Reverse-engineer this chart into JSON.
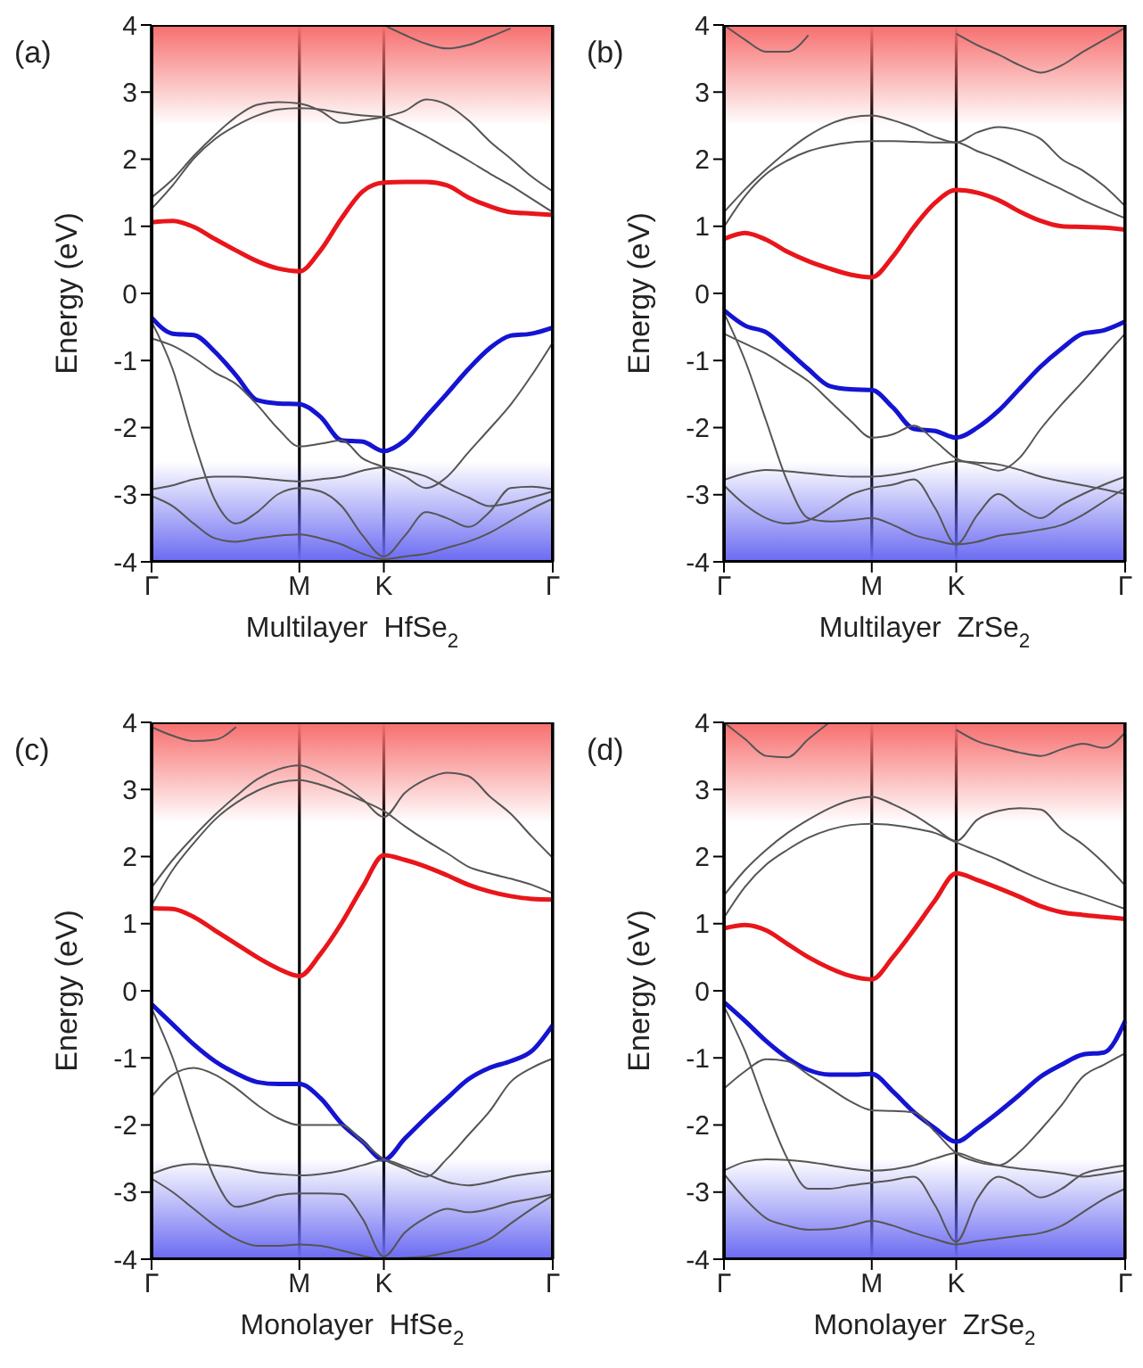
{
  "chart_data": [
    {
      "type": "line",
      "xlabel": "Multilayer  HfSe$_{2}$",
      "ylabel": "Energy (eV)",
      "annotations": [
        "(a)"
      ],
      "grid": "x",
      "marker": "none",
      "line_style": "solid",
      "categories": [
        "Γ",
        null,
        null,
        null,
        null,
        null,
        null,
        "M",
        null,
        null,
        null,
        "K",
        null,
        null,
        null,
        null,
        null,
        null,
        null,
        "Γ"
      ],
      "ylim": [
        -4,
        4
      ],
      "yticks": [
        -4,
        -3,
        -2,
        -1,
        0,
        1,
        2,
        3,
        4
      ],
      "bands": [
        {
          "axis": "y",
          "from": 2.5,
          "to": 4,
          "color": "#f76e6e"
        },
        {
          "axis": "y",
          "from": -2.5,
          "to": -4,
          "color": "#6a6af2"
        }
      ],
      "series": [
        {
          "color": "#e8161b",
          "values": [
            1.06,
            1.08,
            0.99,
            0.81,
            0.64,
            0.48,
            0.37,
            0.33,
            0.64,
            1.12,
            1.52,
            1.65,
            1.66,
            1.66,
            1.61,
            1.43,
            1.3,
            1.21,
            1.19,
            1.17
          ]
        },
        {
          "color": "#1414d2",
          "values": [
            -0.36,
            -0.6,
            -0.62,
            -0.87,
            -1.22,
            -1.59,
            -1.64,
            -1.65,
            -1.84,
            -2.19,
            -2.21,
            -2.35,
            -2.19,
            -1.84,
            -1.49,
            -1.13,
            -0.82,
            -0.63,
            -0.6,
            -0.51
          ]
        },
        {
          "color": "#555555",
          "values": [
            1.43,
            1.7,
            2.05,
            2.36,
            2.63,
            2.81,
            2.85,
            2.83,
            2.72,
            2.54,
            2.58,
            2.63,
            2.72,
            2.89,
            2.81,
            2.58,
            2.27,
            2.01,
            1.74,
            1.52
          ]
        },
        {
          "color": "#555555",
          "values": [
            1.26,
            1.61,
            2.01,
            2.3,
            2.5,
            2.65,
            2.74,
            2.76,
            2.74,
            2.69,
            2.65,
            2.63,
            2.5,
            2.34,
            2.16,
            1.98,
            1.79,
            1.61,
            1.41,
            1.21
          ]
        },
        {
          "color": "#555555",
          "values": [
            null,
            null,
            null,
            null,
            null,
            null,
            null,
            null,
            null,
            null,
            null,
            4.0,
            3.85,
            3.72,
            3.65,
            3.7,
            3.82,
            3.95,
            null,
            null
          ]
        },
        {
          "color": "#555555",
          "values": [
            -0.67,
            -0.78,
            -0.96,
            -1.18,
            -1.35,
            -1.66,
            -2.02,
            -2.28,
            -2.24,
            -2.19,
            -2.46,
            -2.59,
            -2.73,
            -2.9,
            -2.73,
            -2.37,
            -2.02,
            -1.66,
            -1.22,
            -0.73
          ]
        },
        {
          "color": "#555555",
          "values": [
            -0.42,
            -1.13,
            -2.19,
            -3.08,
            -3.43,
            -3.26,
            -2.99,
            -2.9,
            -2.95,
            -3.17,
            -3.61,
            -3.92,
            -3.61,
            -3.26,
            -3.35,
            -3.48,
            -3.26,
            -2.9,
            -2.88,
            -2.92
          ]
        },
        {
          "color": "#555555",
          "values": [
            -2.92,
            -2.86,
            -2.77,
            -2.73,
            -2.73,
            -2.75,
            -2.78,
            -2.8,
            -2.77,
            -2.73,
            -2.64,
            -2.59,
            -2.64,
            -2.73,
            -2.9,
            -3.04,
            -3.17,
            -3.12,
            -3.04,
            -2.95
          ]
        },
        {
          "color": "#555555",
          "values": [
            -3.02,
            -3.17,
            -3.43,
            -3.65,
            -3.7,
            -3.65,
            -3.61,
            -3.59,
            -3.65,
            -3.74,
            -3.88,
            -3.96,
            -3.92,
            -3.88,
            -3.79,
            -3.7,
            -3.57,
            -3.39,
            -3.21,
            -3.06
          ]
        }
      ]
    },
    {
      "type": "line",
      "xlabel": "Multilayer  ZrSe$_{2}$",
      "ylabel": "Energy (eV)",
      "annotations": [
        "(b)"
      ],
      "grid": "x",
      "marker": "none",
      "line_style": "solid",
      "categories": [
        "Γ",
        null,
        null,
        null,
        null,
        null,
        null,
        "M",
        null,
        null,
        null,
        "K",
        null,
        null,
        null,
        null,
        null,
        null,
        null,
        "Γ"
      ],
      "ylim": [
        -4,
        4
      ],
      "yticks": [
        -4,
        -3,
        -2,
        -1,
        0,
        1,
        2,
        3,
        4
      ],
      "bands": [
        {
          "axis": "y",
          "from": 2.5,
          "to": 4,
          "color": "#f76e6e"
        },
        {
          "axis": "y",
          "from": -2.5,
          "to": -4,
          "color": "#6a6af2"
        }
      ],
      "series": [
        {
          "color": "#e8161b",
          "values": [
            0.81,
            0.9,
            0.8,
            0.62,
            0.48,
            0.37,
            0.28,
            0.24,
            0.55,
            0.99,
            1.35,
            1.54,
            1.5,
            1.39,
            1.22,
            1.08,
            1.0,
            0.99,
            0.98,
            0.95
          ]
        },
        {
          "color": "#1414d2",
          "values": [
            -0.25,
            -0.48,
            -0.58,
            -0.85,
            -1.13,
            -1.38,
            -1.43,
            -1.44,
            -1.7,
            -2.02,
            -2.05,
            -2.15,
            -2.0,
            -1.75,
            -1.42,
            -1.09,
            -0.82,
            -0.6,
            -0.55,
            -0.42
          ]
        },
        {
          "color": "#555555",
          "values": [
            1.21,
            1.55,
            1.85,
            2.12,
            2.35,
            2.52,
            2.62,
            2.65,
            2.58,
            2.47,
            2.33,
            2.25,
            2.4,
            2.48,
            2.43,
            2.3,
            2.0,
            1.83,
            1.6,
            1.3
          ]
        },
        {
          "color": "#555555",
          "values": [
            0.99,
            1.45,
            1.78,
            1.98,
            2.12,
            2.2,
            2.25,
            2.27,
            2.27,
            2.26,
            2.25,
            2.25,
            2.12,
            2.0,
            1.85,
            1.7,
            1.55,
            1.39,
            1.25,
            1.12
          ]
        },
        {
          "color": "#555555",
          "values": [
            4.0,
            3.78,
            3.6,
            3.6,
            3.85,
            null,
            null,
            null,
            null,
            null,
            null,
            3.87,
            3.7,
            3.56,
            3.4,
            3.29,
            3.4,
            3.6,
            3.78,
            3.96
          ]
        },
        {
          "color": "#555555",
          "values": [
            -0.6,
            -0.75,
            -0.9,
            -1.1,
            -1.31,
            -1.6,
            -1.9,
            -2.15,
            -2.1,
            -1.97,
            -2.2,
            -2.46,
            -2.55,
            -2.64,
            -2.45,
            -2.02,
            -1.65,
            -1.31,
            -0.95,
            -0.6
          ]
        },
        {
          "color": "#555555",
          "values": [
            -0.29,
            -1.0,
            -1.9,
            -2.8,
            -3.35,
            -3.4,
            -3.38,
            -3.35,
            -3.45,
            -3.6,
            -3.68,
            -3.74,
            -3.3,
            -2.99,
            -3.2,
            -3.35,
            -3.15,
            -2.99,
            -2.85,
            -2.73
          ]
        },
        {
          "color": "#555555",
          "values": [
            -2.78,
            -2.68,
            -2.63,
            -2.65,
            -2.68,
            -2.71,
            -2.73,
            -2.73,
            -2.7,
            -2.64,
            -2.56,
            -2.5,
            -2.52,
            -2.55,
            -2.63,
            -2.73,
            -2.8,
            -2.86,
            -2.92,
            -2.99
          ]
        },
        {
          "color": "#555555",
          "values": [
            -2.86,
            -3.15,
            -3.35,
            -3.43,
            -3.38,
            -3.2,
            -3.0,
            -2.9,
            -2.85,
            -2.77,
            -3.2,
            -3.74,
            -3.7,
            -3.61,
            -3.57,
            -3.52,
            -3.45,
            -3.3,
            -3.1,
            -2.9
          ]
        }
      ]
    },
    {
      "type": "line",
      "xlabel": "Monolayer  HfSe$_{2}$",
      "ylabel": "Energy (eV)",
      "annotations": [
        "(c)"
      ],
      "grid": "x",
      "marker": "none",
      "line_style": "solid",
      "categories": [
        "Γ",
        null,
        null,
        null,
        null,
        null,
        null,
        "M",
        null,
        null,
        null,
        "K",
        null,
        null,
        null,
        null,
        null,
        null,
        null,
        "Γ"
      ],
      "ylim": [
        -4,
        4
      ],
      "yticks": [
        -4,
        -3,
        -2,
        -1,
        0,
        1,
        2,
        3,
        4
      ],
      "bands": [
        {
          "axis": "y",
          "from": 2.5,
          "to": 4,
          "color": "#f76e6e"
        },
        {
          "axis": "y",
          "from": -2.5,
          "to": -4,
          "color": "#6a6af2"
        }
      ],
      "series": [
        {
          "color": "#e8161b",
          "values": [
            1.23,
            1.22,
            1.1,
            0.9,
            0.7,
            0.5,
            0.33,
            0.22,
            0.55,
            1.01,
            1.55,
            2.02,
            1.95,
            1.85,
            1.72,
            1.58,
            1.48,
            1.41,
            1.37,
            1.36
          ]
        },
        {
          "color": "#1414d2",
          "values": [
            -0.2,
            -0.5,
            -0.8,
            -1.05,
            -1.23,
            -1.36,
            -1.39,
            -1.39,
            -1.6,
            -1.98,
            -2.25,
            -2.52,
            -2.2,
            -1.89,
            -1.6,
            -1.32,
            -1.15,
            -1.05,
            -0.9,
            -0.51
          ]
        },
        {
          "color": "#555555",
          "values": [
            1.54,
            1.95,
            2.3,
            2.62,
            2.9,
            3.15,
            3.3,
            3.36,
            3.25,
            3.08,
            2.85,
            2.59,
            2.95,
            3.15,
            3.25,
            3.2,
            2.9,
            2.64,
            2.3,
            1.98
          ]
        },
        {
          "color": "#555555",
          "values": [
            1.27,
            1.8,
            2.2,
            2.55,
            2.8,
            2.98,
            3.1,
            3.14,
            3.07,
            2.96,
            2.83,
            2.68,
            2.45,
            2.24,
            2.05,
            1.85,
            1.75,
            1.67,
            1.58,
            1.45
          ]
        },
        {
          "color": "#555555",
          "values": [
            3.93,
            3.8,
            3.72,
            3.74,
            3.93,
            null,
            null,
            null,
            null,
            null,
            null,
            null,
            null,
            null,
            null,
            null,
            null,
            null,
            null,
            null
          ]
        },
        {
          "color": "#555555",
          "values": [
            -1.58,
            -1.25,
            -1.15,
            -1.25,
            -1.45,
            -1.7,
            -1.9,
            -2.0,
            -2.0,
            -2.0,
            -2.25,
            -2.51,
            -2.65,
            -2.77,
            -2.5,
            -2.15,
            -1.8,
            -1.36,
            -1.15,
            -1.01
          ]
        },
        {
          "color": "#555555",
          "values": [
            -0.26,
            -1.0,
            -1.95,
            -2.8,
            -3.22,
            -3.15,
            -3.05,
            -3.02,
            -3.02,
            -3.03,
            -3.4,
            -3.96,
            -3.6,
            -3.38,
            -3.25,
            -3.3,
            -3.25,
            -3.16,
            -3.1,
            -3.03
          ]
        },
        {
          "color": "#555555",
          "values": [
            -2.73,
            -2.62,
            -2.58,
            -2.6,
            -2.64,
            -2.7,
            -2.73,
            -2.75,
            -2.73,
            -2.68,
            -2.6,
            -2.52,
            -2.62,
            -2.73,
            -2.85,
            -2.9,
            -2.85,
            -2.77,
            -2.72,
            -2.68
          ]
        },
        {
          "color": "#555555",
          "values": [
            -2.8,
            -3.0,
            -3.25,
            -3.5,
            -3.7,
            -3.8,
            -3.8,
            -3.78,
            -3.8,
            -3.87,
            -3.95,
            -4.0,
            -3.98,
            -3.96,
            -3.9,
            -3.82,
            -3.7,
            -3.47,
            -3.25,
            -3.05
          ]
        }
      ]
    },
    {
      "type": "line",
      "xlabel": "Monolayer  ZrSe$_{2}$",
      "ylabel": "Energy (eV)",
      "annotations": [
        "(d)"
      ],
      "grid": "x",
      "marker": "none",
      "line_style": "solid",
      "categories": [
        "Γ",
        null,
        null,
        null,
        null,
        null,
        null,
        "M",
        null,
        null,
        null,
        "K",
        null,
        null,
        null,
        null,
        null,
        null,
        null,
        "Γ"
      ],
      "ylim": [
        -4,
        4
      ],
      "yticks": [
        -4,
        -3,
        -2,
        -1,
        0,
        1,
        2,
        3,
        4
      ],
      "bands": [
        {
          "axis": "y",
          "from": 2.5,
          "to": 4,
          "color": "#f76e6e"
        },
        {
          "axis": "y",
          "from": -2.5,
          "to": -4,
          "color": "#6a6af2"
        }
      ],
      "series": [
        {
          "color": "#e8161b",
          "values": [
            0.93,
            0.98,
            0.9,
            0.7,
            0.5,
            0.34,
            0.22,
            0.17,
            0.5,
            0.91,
            1.35,
            1.75,
            1.65,
            1.53,
            1.4,
            1.26,
            1.17,
            1.13,
            1.1,
            1.07
          ]
        },
        {
          "color": "#1414d2",
          "values": [
            -0.17,
            -0.45,
            -0.75,
            -1.0,
            -1.18,
            -1.25,
            -1.25,
            -1.24,
            -1.5,
            -1.81,
            -2.05,
            -2.25,
            -2.05,
            -1.81,
            -1.55,
            -1.28,
            -1.1,
            -0.95,
            -0.92,
            -0.45
          ]
        },
        {
          "color": "#555555",
          "values": [
            1.42,
            1.8,
            2.1,
            2.35,
            2.55,
            2.72,
            2.84,
            2.89,
            2.78,
            2.62,
            2.42,
            2.23,
            2.55,
            2.68,
            2.72,
            2.7,
            2.4,
            2.18,
            1.9,
            1.57
          ]
        },
        {
          "color": "#555555",
          "values": [
            1.09,
            1.55,
            1.88,
            2.1,
            2.28,
            2.4,
            2.47,
            2.49,
            2.47,
            2.42,
            2.35,
            2.21,
            2.08,
            1.95,
            1.8,
            1.66,
            1.54,
            1.44,
            1.33,
            1.22
          ]
        },
        {
          "color": "#555555",
          "values": [
            4.0,
            3.75,
            3.5,
            3.48,
            3.75,
            4.0,
            null,
            null,
            null,
            null,
            null,
            3.89,
            3.72,
            3.63,
            3.55,
            3.5,
            3.6,
            3.68,
            3.62,
            3.85
          ]
        },
        {
          "color": "#555555",
          "values": [
            -1.46,
            -1.2,
            -1.02,
            -1.05,
            -1.25,
            -1.45,
            -1.65,
            -1.78,
            -1.79,
            -1.81,
            -2.1,
            -2.42,
            -2.55,
            -2.6,
            -2.4,
            -2.07,
            -1.7,
            -1.28,
            -1.1,
            -0.93
          ]
        },
        {
          "color": "#555555",
          "values": [
            -0.23,
            -0.9,
            -1.75,
            -2.5,
            -2.95,
            -2.95,
            -2.9,
            -2.86,
            -2.82,
            -2.77,
            -3.2,
            -3.74,
            -3.1,
            -2.77,
            -2.9,
            -3.08,
            -2.95,
            -2.73,
            -2.65,
            -2.6
          ]
        },
        {
          "color": "#555555",
          "values": [
            -2.68,
            -2.55,
            -2.51,
            -2.52,
            -2.55,
            -2.6,
            -2.65,
            -2.68,
            -2.66,
            -2.6,
            -2.5,
            -2.42,
            -2.52,
            -2.6,
            -2.65,
            -2.68,
            -2.72,
            -2.77,
            -2.73,
            -2.68
          ]
        },
        {
          "color": "#555555",
          "values": [
            -2.73,
            -3.1,
            -3.39,
            -3.5,
            -3.56,
            -3.55,
            -3.5,
            -3.43,
            -3.5,
            -3.61,
            -3.7,
            -3.78,
            -3.73,
            -3.69,
            -3.65,
            -3.61,
            -3.5,
            -3.3,
            -3.1,
            -2.95
          ]
        }
      ]
    }
  ]
}
